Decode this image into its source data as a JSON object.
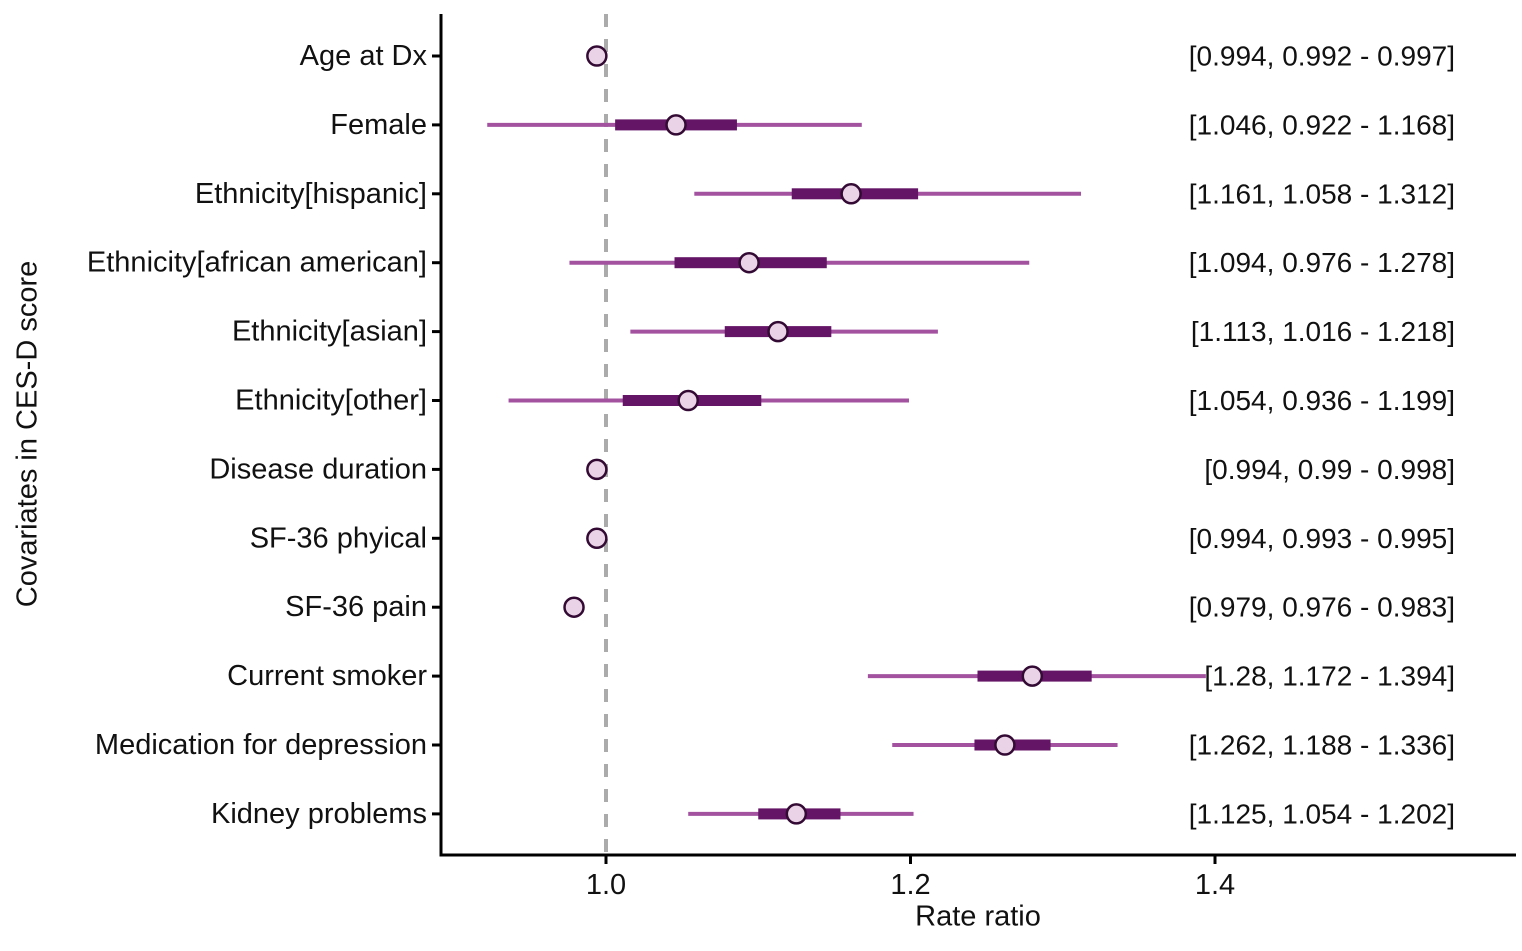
{
  "chart_data": {
    "type": "forest",
    "orientation": "horizontal",
    "title": "",
    "xlabel": "Rate ratio",
    "ylabel": "Covariates in CES-D score",
    "x_ticks": [
      1.0,
      1.2,
      1.4
    ],
    "x_tick_labels": [
      "1.0",
      "1.2",
      "1.4"
    ],
    "xlim": [
      0.893,
      1.594
    ],
    "reference_line": 1.0,
    "grid": false,
    "legend": false,
    "rows": [
      {
        "label": "Age at Dx",
        "estimate": 0.994,
        "ci_low": 0.992,
        "ci_high": 0.997,
        "inner_low": null,
        "inner_high": null,
        "annotation": "[0.994, 0.992 - 0.997]"
      },
      {
        "label": "Female",
        "estimate": 1.046,
        "ci_low": 0.922,
        "ci_high": 1.168,
        "inner_low": 1.006,
        "inner_high": 1.086,
        "annotation": "[1.046, 0.922 - 1.168]"
      },
      {
        "label": "Ethnicity[hispanic]",
        "estimate": 1.161,
        "ci_low": 1.058,
        "ci_high": 1.312,
        "inner_low": 1.122,
        "inner_high": 1.205,
        "annotation": "[1.161, 1.058 - 1.312]"
      },
      {
        "label": "Ethnicity[african american]",
        "estimate": 1.094,
        "ci_low": 0.976,
        "ci_high": 1.278,
        "inner_low": 1.045,
        "inner_high": 1.145,
        "annotation": "[1.094, 0.976 - 1.278]"
      },
      {
        "label": "Ethnicity[asian]",
        "estimate": 1.113,
        "ci_low": 1.016,
        "ci_high": 1.218,
        "inner_low": 1.078,
        "inner_high": 1.148,
        "annotation": "[1.113, 1.016 - 1.218]"
      },
      {
        "label": "Ethnicity[other]",
        "estimate": 1.054,
        "ci_low": 0.936,
        "ci_high": 1.199,
        "inner_low": 1.011,
        "inner_high": 1.102,
        "annotation": "[1.054, 0.936 - 1.199]"
      },
      {
        "label": "Disease duration",
        "estimate": 0.994,
        "ci_low": 0.99,
        "ci_high": 0.998,
        "inner_low": null,
        "inner_high": null,
        "annotation": "[0.994, 0.99 - 0.998]"
      },
      {
        "label": "SF-36 phyical",
        "estimate": 0.994,
        "ci_low": 0.993,
        "ci_high": 0.995,
        "inner_low": null,
        "inner_high": null,
        "annotation": "[0.994, 0.993 - 0.995]"
      },
      {
        "label": "SF-36 pain",
        "estimate": 0.979,
        "ci_low": 0.976,
        "ci_high": 0.983,
        "inner_low": null,
        "inner_high": null,
        "annotation": "[0.979, 0.976 - 0.983]"
      },
      {
        "label": "Current smoker",
        "estimate": 1.28,
        "ci_low": 1.172,
        "ci_high": 1.394,
        "inner_low": 1.244,
        "inner_high": 1.319,
        "annotation": "[1.28, 1.172 - 1.394]"
      },
      {
        "label": "Medication for depression",
        "estimate": 1.262,
        "ci_low": 1.188,
        "ci_high": 1.336,
        "inner_low": 1.242,
        "inner_high": 1.292,
        "annotation": "[1.262, 1.188 - 1.336]"
      },
      {
        "label": "Kidney problems",
        "estimate": 1.125,
        "ci_low": 1.054,
        "ci_high": 1.202,
        "inner_low": 1.1,
        "inner_high": 1.154,
        "annotation": "[1.125, 1.054 - 1.202]"
      }
    ],
    "colors": {
      "ci_line": "#a352a0",
      "inner_bar": "#641566",
      "point_fill": "#ead3e6",
      "point_stroke": "#330a33",
      "reference_line": "#ababab",
      "axis": "#000000",
      "text": "#111111"
    }
  }
}
